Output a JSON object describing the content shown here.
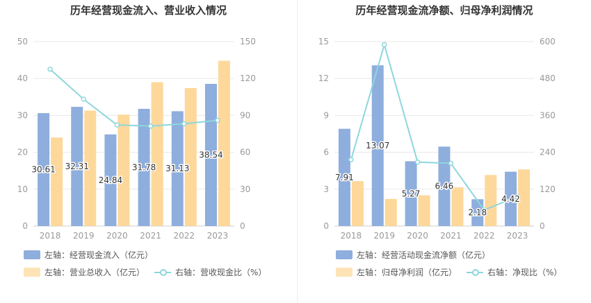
{
  "colors": {
    "bar_primary": "#8eaedd",
    "bar_secondary": "#fdd89a",
    "line": "#8ed6dc",
    "axis_text": "#999999",
    "grid": "#e8e8e8",
    "value_label": "#333333"
  },
  "chart_data": [
    {
      "type": "bar",
      "title": "历年经营现金流入、营业收入情况",
      "categories": [
        "2018",
        "2019",
        "2020",
        "2021",
        "2022",
        "2023"
      ],
      "left_axis": {
        "min": 0,
        "max": 50,
        "ticks": [
          "0",
          "10",
          "20",
          "30",
          "40",
          "50"
        ]
      },
      "right_axis": {
        "min": 0,
        "max": 150,
        "ticks": [
          "0",
          "30",
          "60",
          "90",
          "120",
          "150"
        ]
      },
      "grid": true,
      "legend_position": "bottom-left",
      "series": [
        {
          "name": "左轴：经营现金流入（亿元）",
          "axis": "left",
          "kind": "bar",
          "values": [
            30.61,
            32.31,
            24.84,
            31.78,
            31.13,
            38.54
          ],
          "labels": [
            "30.61",
            "32.31",
            "24.84",
            "31.78",
            "31.13",
            "38.54"
          ]
        },
        {
          "name": "左轴：营业总收入（亿元）",
          "axis": "left",
          "kind": "bar",
          "values": [
            24.0,
            31.3,
            30.2,
            39.0,
            37.4,
            44.8
          ]
        },
        {
          "name": "右轴：营收现金比（%）",
          "axis": "right",
          "kind": "line",
          "values": [
            127.5,
            103.2,
            82.2,
            81.3,
            83.2,
            86.0
          ]
        }
      ]
    },
    {
      "type": "bar",
      "title": "历年经营现金流净额、归母净利润情况",
      "categories": [
        "2018",
        "2019",
        "2020",
        "2021",
        "2022",
        "2023"
      ],
      "left_axis": {
        "min": 0,
        "max": 15,
        "ticks": [
          "0",
          "3",
          "6",
          "9",
          "12",
          "15"
        ]
      },
      "right_axis": {
        "min": 0,
        "max": 600,
        "ticks": [
          "0",
          "120",
          "240",
          "360",
          "480",
          "600"
        ]
      },
      "grid": true,
      "legend_position": "bottom-left",
      "series": [
        {
          "name": "左轴：经营活动现金流净额（亿元）",
          "axis": "left",
          "kind": "bar",
          "values": [
            7.91,
            13.07,
            5.27,
            6.46,
            2.18,
            4.42
          ],
          "labels": [
            "7.91",
            "13.07",
            "5.27",
            "6.46",
            "2.18",
            "4.42"
          ]
        },
        {
          "name": "左轴：归母净利润（亿元）",
          "axis": "left",
          "kind": "bar",
          "values": [
            3.65,
            2.2,
            2.5,
            3.15,
            4.15,
            4.6
          ]
        },
        {
          "name": "右轴：净现比（%）",
          "axis": "right",
          "kind": "line",
          "values": [
            216,
            590,
            208,
            204,
            52,
            96
          ]
        }
      ]
    }
  ]
}
